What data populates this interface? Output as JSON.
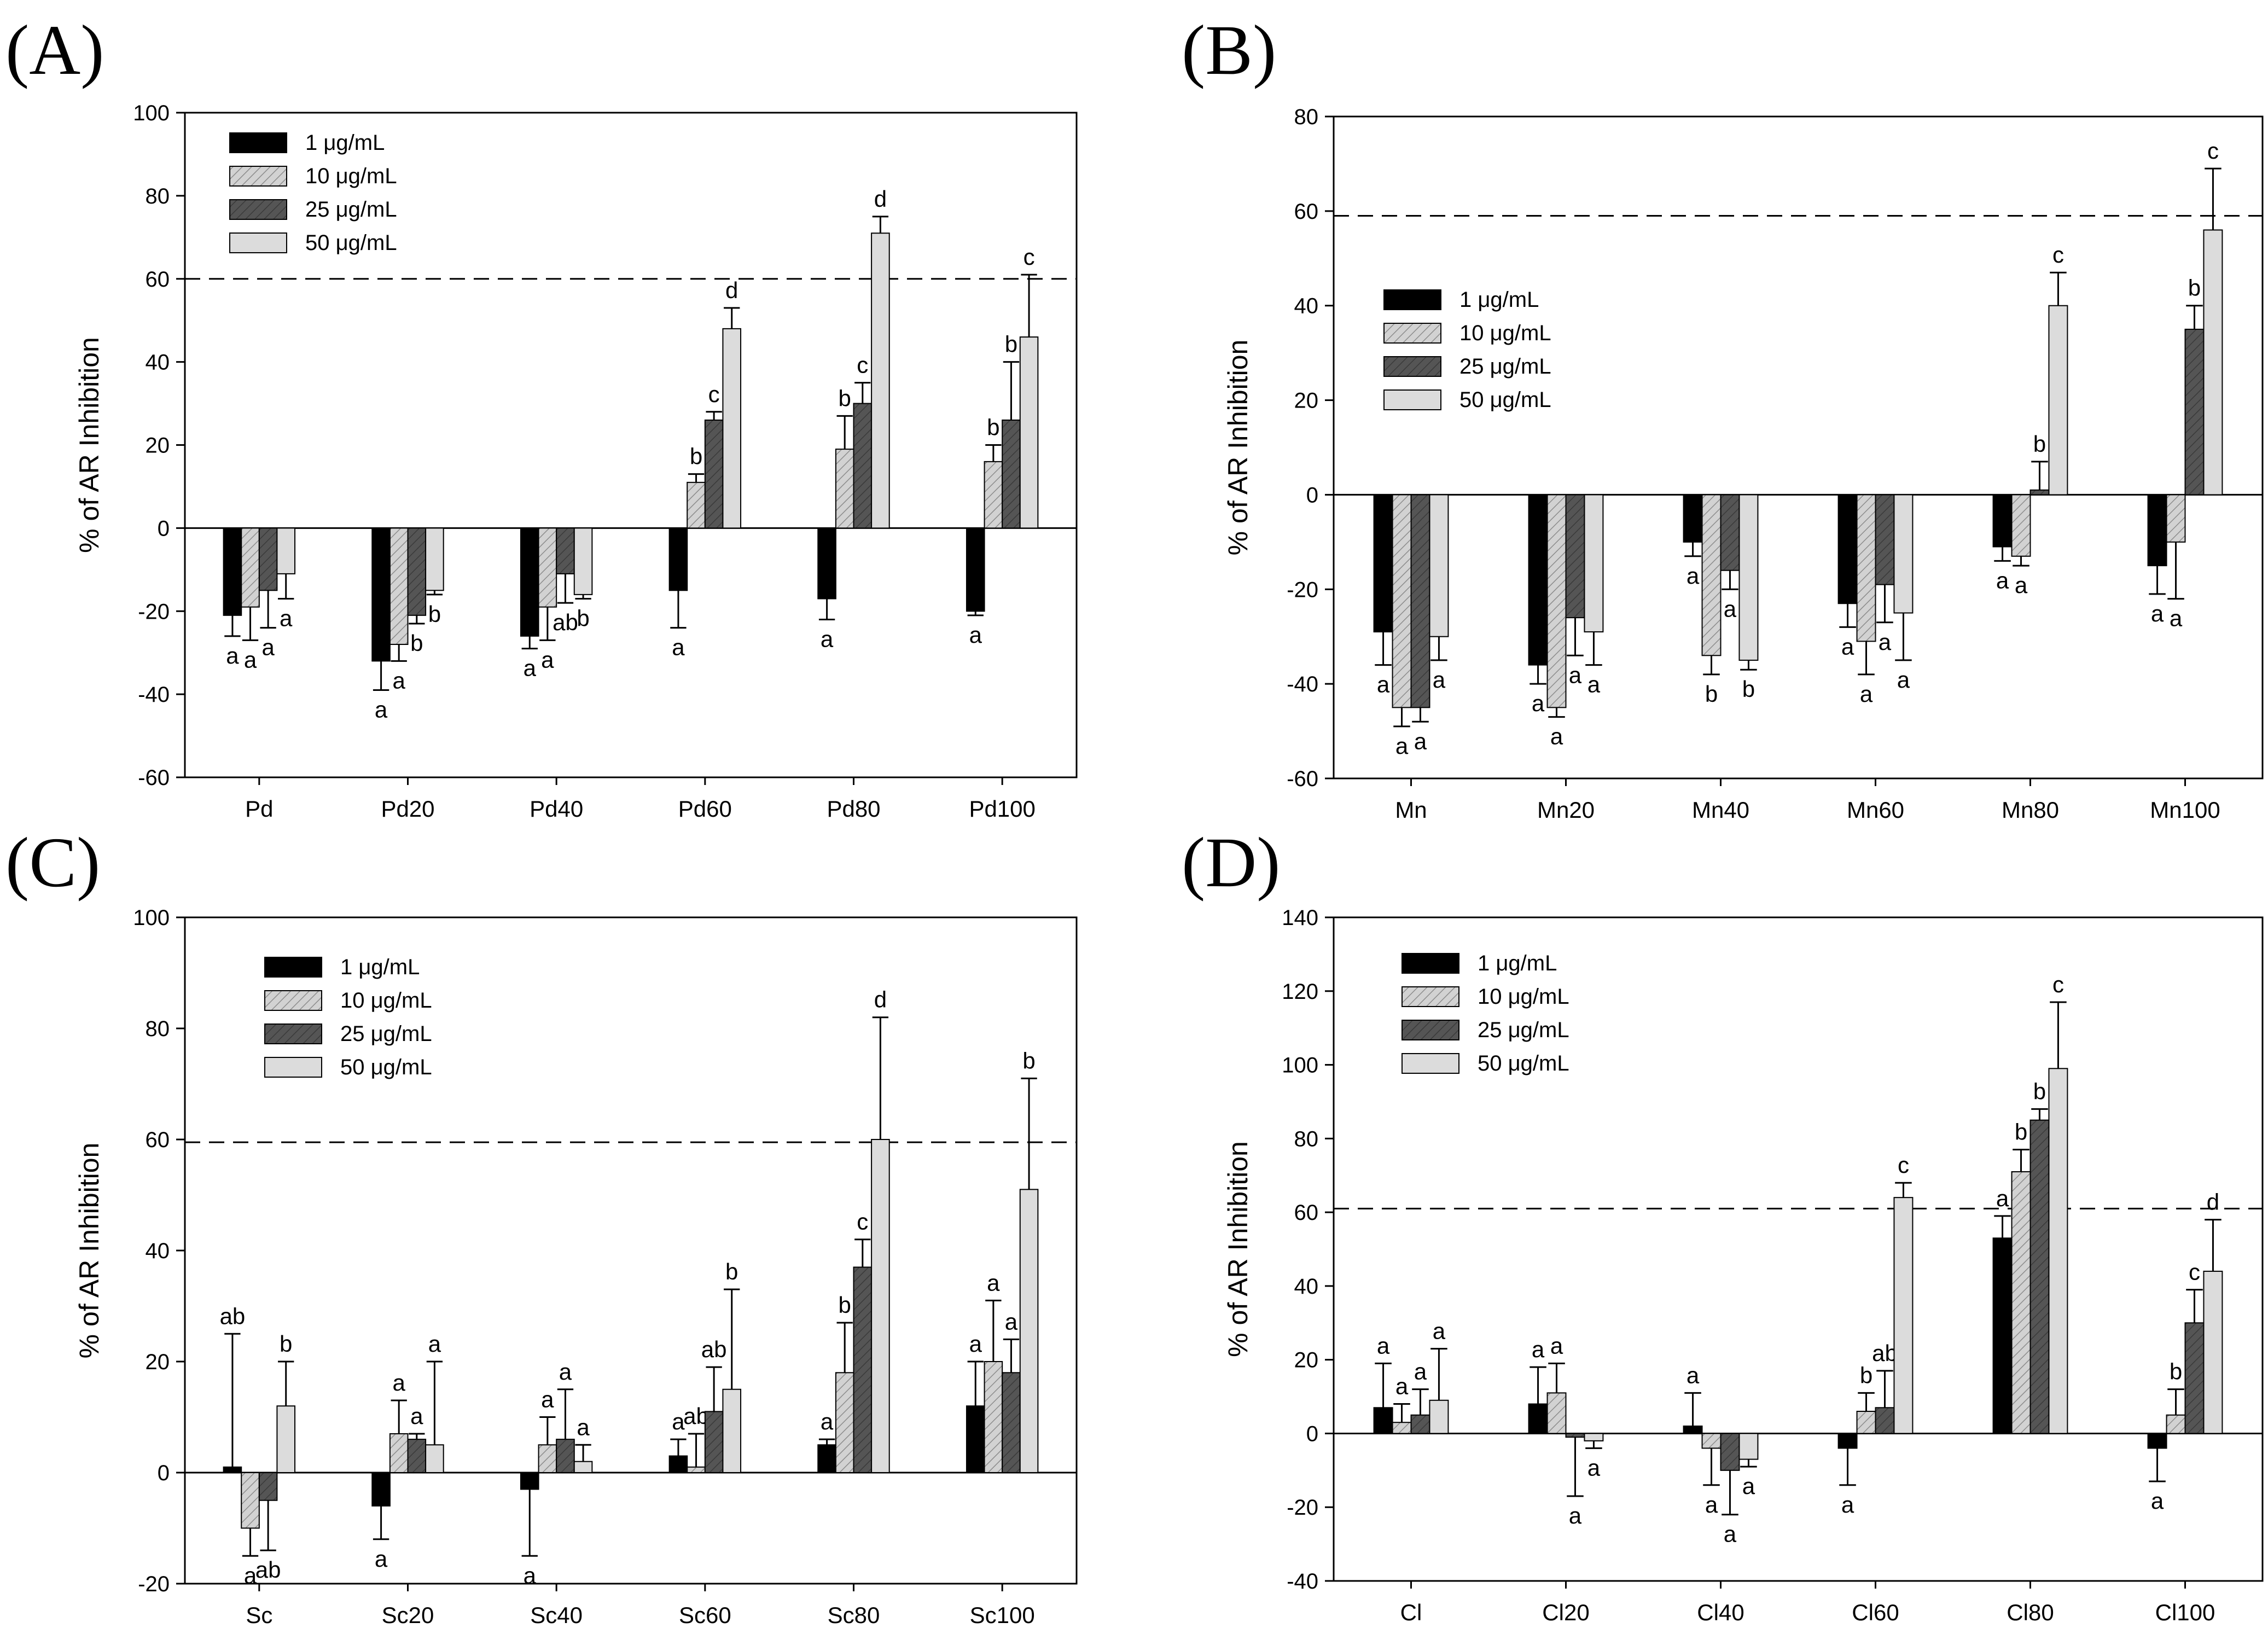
{
  "figure": {
    "patterns": {
      "s1": "#000000",
      "s2": "#c4c4c4",
      "s3": "#595959",
      "s4": "#dcdcdc"
    },
    "colors": {
      "axis": "#000000",
      "threshold": "#000000",
      "zero_line": "#000000"
    }
  },
  "chart_data": [
    {
      "type": "bar",
      "panel_label": "(A)",
      "title": "",
      "xlabel": "",
      "ylabel": "% of AR Inhibition",
      "ylim": [
        -60,
        100
      ],
      "yticks": [
        -60,
        -40,
        -20,
        0,
        20,
        40,
        60,
        80,
        100
      ],
      "threshold": 60,
      "legend_position": "top-left",
      "categories": [
        "Pd",
        "Pd20",
        "Pd40",
        "Pd60",
        "Pd80",
        "Pd100"
      ],
      "series": [
        {
          "name": "1 μg/mL",
          "values": [
            -21,
            -32,
            -26,
            -15,
            -17,
            -20
          ],
          "errors": [
            5,
            7,
            3,
            9,
            5,
            1
          ],
          "letters": [
            "a",
            "a",
            "a",
            "a",
            "a",
            "a"
          ]
        },
        {
          "name": "10 μg/mL",
          "values": [
            -19,
            -28,
            -19,
            11,
            19,
            16
          ],
          "errors": [
            8,
            4,
            8,
            2,
            8,
            4
          ],
          "letters": [
            "a",
            "a",
            "a",
            "b",
            "b",
            "b"
          ]
        },
        {
          "name": "25 μg/mL",
          "values": [
            -15,
            -21,
            -11,
            26,
            30,
            26
          ],
          "errors": [
            9,
            2,
            7,
            2,
            5,
            14
          ],
          "letters": [
            "a",
            "b",
            "ab",
            "c",
            "c",
            "b"
          ]
        },
        {
          "name": "50 μg/mL",
          "values": [
            -11,
            -15,
            -16,
            48,
            71,
            46
          ],
          "errors": [
            6,
            1,
            1,
            5,
            4,
            15
          ],
          "letters": [
            "a",
            "b",
            "b",
            "d",
            "d",
            "c"
          ]
        }
      ]
    },
    {
      "type": "bar",
      "panel_label": "(B)",
      "title": "",
      "xlabel": "",
      "ylabel": "% of AR Inhibition",
      "ylim": [
        -60,
        80
      ],
      "yticks": [
        -60,
        -40,
        -20,
        0,
        20,
        40,
        60,
        80
      ],
      "threshold": 59,
      "legend_position": "middle-left",
      "categories": [
        "Mn",
        "Mn20",
        "Mn40",
        "Mn60",
        "Mn80",
        "Mn100"
      ],
      "series": [
        {
          "name": "1 μg/mL",
          "values": [
            -29,
            -36,
            -10,
            -23,
            -11,
            -15
          ],
          "errors": [
            7,
            4,
            3,
            5,
            3,
            6
          ],
          "letters": [
            "a",
            "a",
            "a",
            "a",
            "a",
            "a"
          ]
        },
        {
          "name": "10 μg/mL",
          "values": [
            -45,
            -45,
            -34,
            -31,
            -13,
            -10
          ],
          "errors": [
            4,
            2,
            4,
            7,
            2,
            12
          ],
          "letters": [
            "a",
            "a",
            "b",
            "a",
            "a",
            "a"
          ]
        },
        {
          "name": "25 μg/mL",
          "values": [
            -45,
            -26,
            -16,
            -19,
            1,
            35
          ],
          "errors": [
            3,
            8,
            4,
            8,
            6,
            5
          ],
          "letters": [
            "a",
            "a",
            "a",
            "a",
            "b",
            "b"
          ]
        },
        {
          "name": "50 μg/mL",
          "values": [
            -30,
            -29,
            -35,
            -25,
            40,
            56
          ],
          "errors": [
            5,
            7,
            2,
            10,
            7,
            13
          ],
          "letters": [
            "a",
            "a",
            "b",
            "a",
            "c",
            "c"
          ]
        }
      ]
    },
    {
      "type": "bar",
      "panel_label": "(C)",
      "title": "",
      "xlabel": "",
      "ylabel": "% of AR Inhibition",
      "ylim": [
        -20,
        100
      ],
      "yticks": [
        -20,
        0,
        20,
        40,
        60,
        80,
        100
      ],
      "threshold": 59.5,
      "legend_position": "top-left",
      "categories": [
        "Sc",
        "Sc20",
        "Sc40",
        "Sc60",
        "Sc80",
        "Sc100"
      ],
      "series": [
        {
          "name": "1 μg/mL",
          "values": [
            1,
            -6,
            -3,
            3,
            5,
            12
          ],
          "errors": [
            24,
            6,
            12,
            3,
            1,
            8
          ],
          "letters": [
            "ab",
            "a",
            "a",
            "a",
            "a",
            "a"
          ]
        },
        {
          "name": "10 μg/mL",
          "values": [
            -10,
            7,
            5,
            1,
            18,
            20
          ],
          "errors": [
            5,
            6,
            5,
            6,
            9,
            11
          ],
          "letters": [
            "a",
            "a",
            "a",
            "ab",
            "b",
            "a"
          ]
        },
        {
          "name": "25 μg/mL",
          "values": [
            -5,
            6,
            6,
            11,
            37,
            18
          ],
          "errors": [
            9,
            1,
            9,
            8,
            5,
            6
          ],
          "letters": [
            "ab",
            "a",
            "a",
            "ab",
            "c",
            "a"
          ]
        },
        {
          "name": "50 μg/mL",
          "values": [
            12,
            5,
            2,
            15,
            60,
            51
          ],
          "errors": [
            8,
            15,
            3,
            18,
            22,
            20
          ],
          "letters": [
            "b",
            "a",
            "a",
            "b",
            "d",
            "b"
          ]
        }
      ]
    },
    {
      "type": "bar",
      "panel_label": "(D)",
      "title": "",
      "xlabel": "",
      "ylabel": "% of AR Inhibition",
      "ylim": [
        -40,
        140
      ],
      "yticks": [
        -40,
        -20,
        0,
        20,
        40,
        60,
        80,
        100,
        120,
        140
      ],
      "threshold": 61,
      "legend_position": "top-left",
      "categories": [
        "Cl",
        "Cl20",
        "Cl40",
        "Cl60",
        "Cl80",
        "Cl100"
      ],
      "series": [
        {
          "name": "1 μg/mL",
          "values": [
            7,
            8,
            2,
            -4,
            53,
            -4
          ],
          "errors": [
            12,
            10,
            9,
            10,
            6,
            9
          ],
          "letters": [
            "a",
            "a",
            "a",
            "a",
            "a",
            "a"
          ]
        },
        {
          "name": "10 μg/mL",
          "values": [
            3,
            11,
            -4,
            6,
            71,
            5
          ],
          "errors": [
            5,
            8,
            10,
            5,
            6,
            7
          ],
          "letters": [
            "a",
            "a",
            "a",
            "b",
            "b",
            "b"
          ]
        },
        {
          "name": "25 μg/mL",
          "values": [
            5,
            -1,
            -10,
            7,
            85,
            30
          ],
          "errors": [
            7,
            16,
            12,
            10,
            3,
            9
          ],
          "letters": [
            "a",
            "a",
            "a",
            "ab",
            "b",
            "c"
          ]
        },
        {
          "name": "50 μg/mL",
          "values": [
            9,
            -2,
            -7,
            64,
            99,
            44
          ],
          "errors": [
            14,
            2,
            2,
            4,
            18,
            14
          ],
          "letters": [
            "a",
            "a",
            "a",
            "c",
            "c",
            "d"
          ]
        }
      ]
    }
  ]
}
